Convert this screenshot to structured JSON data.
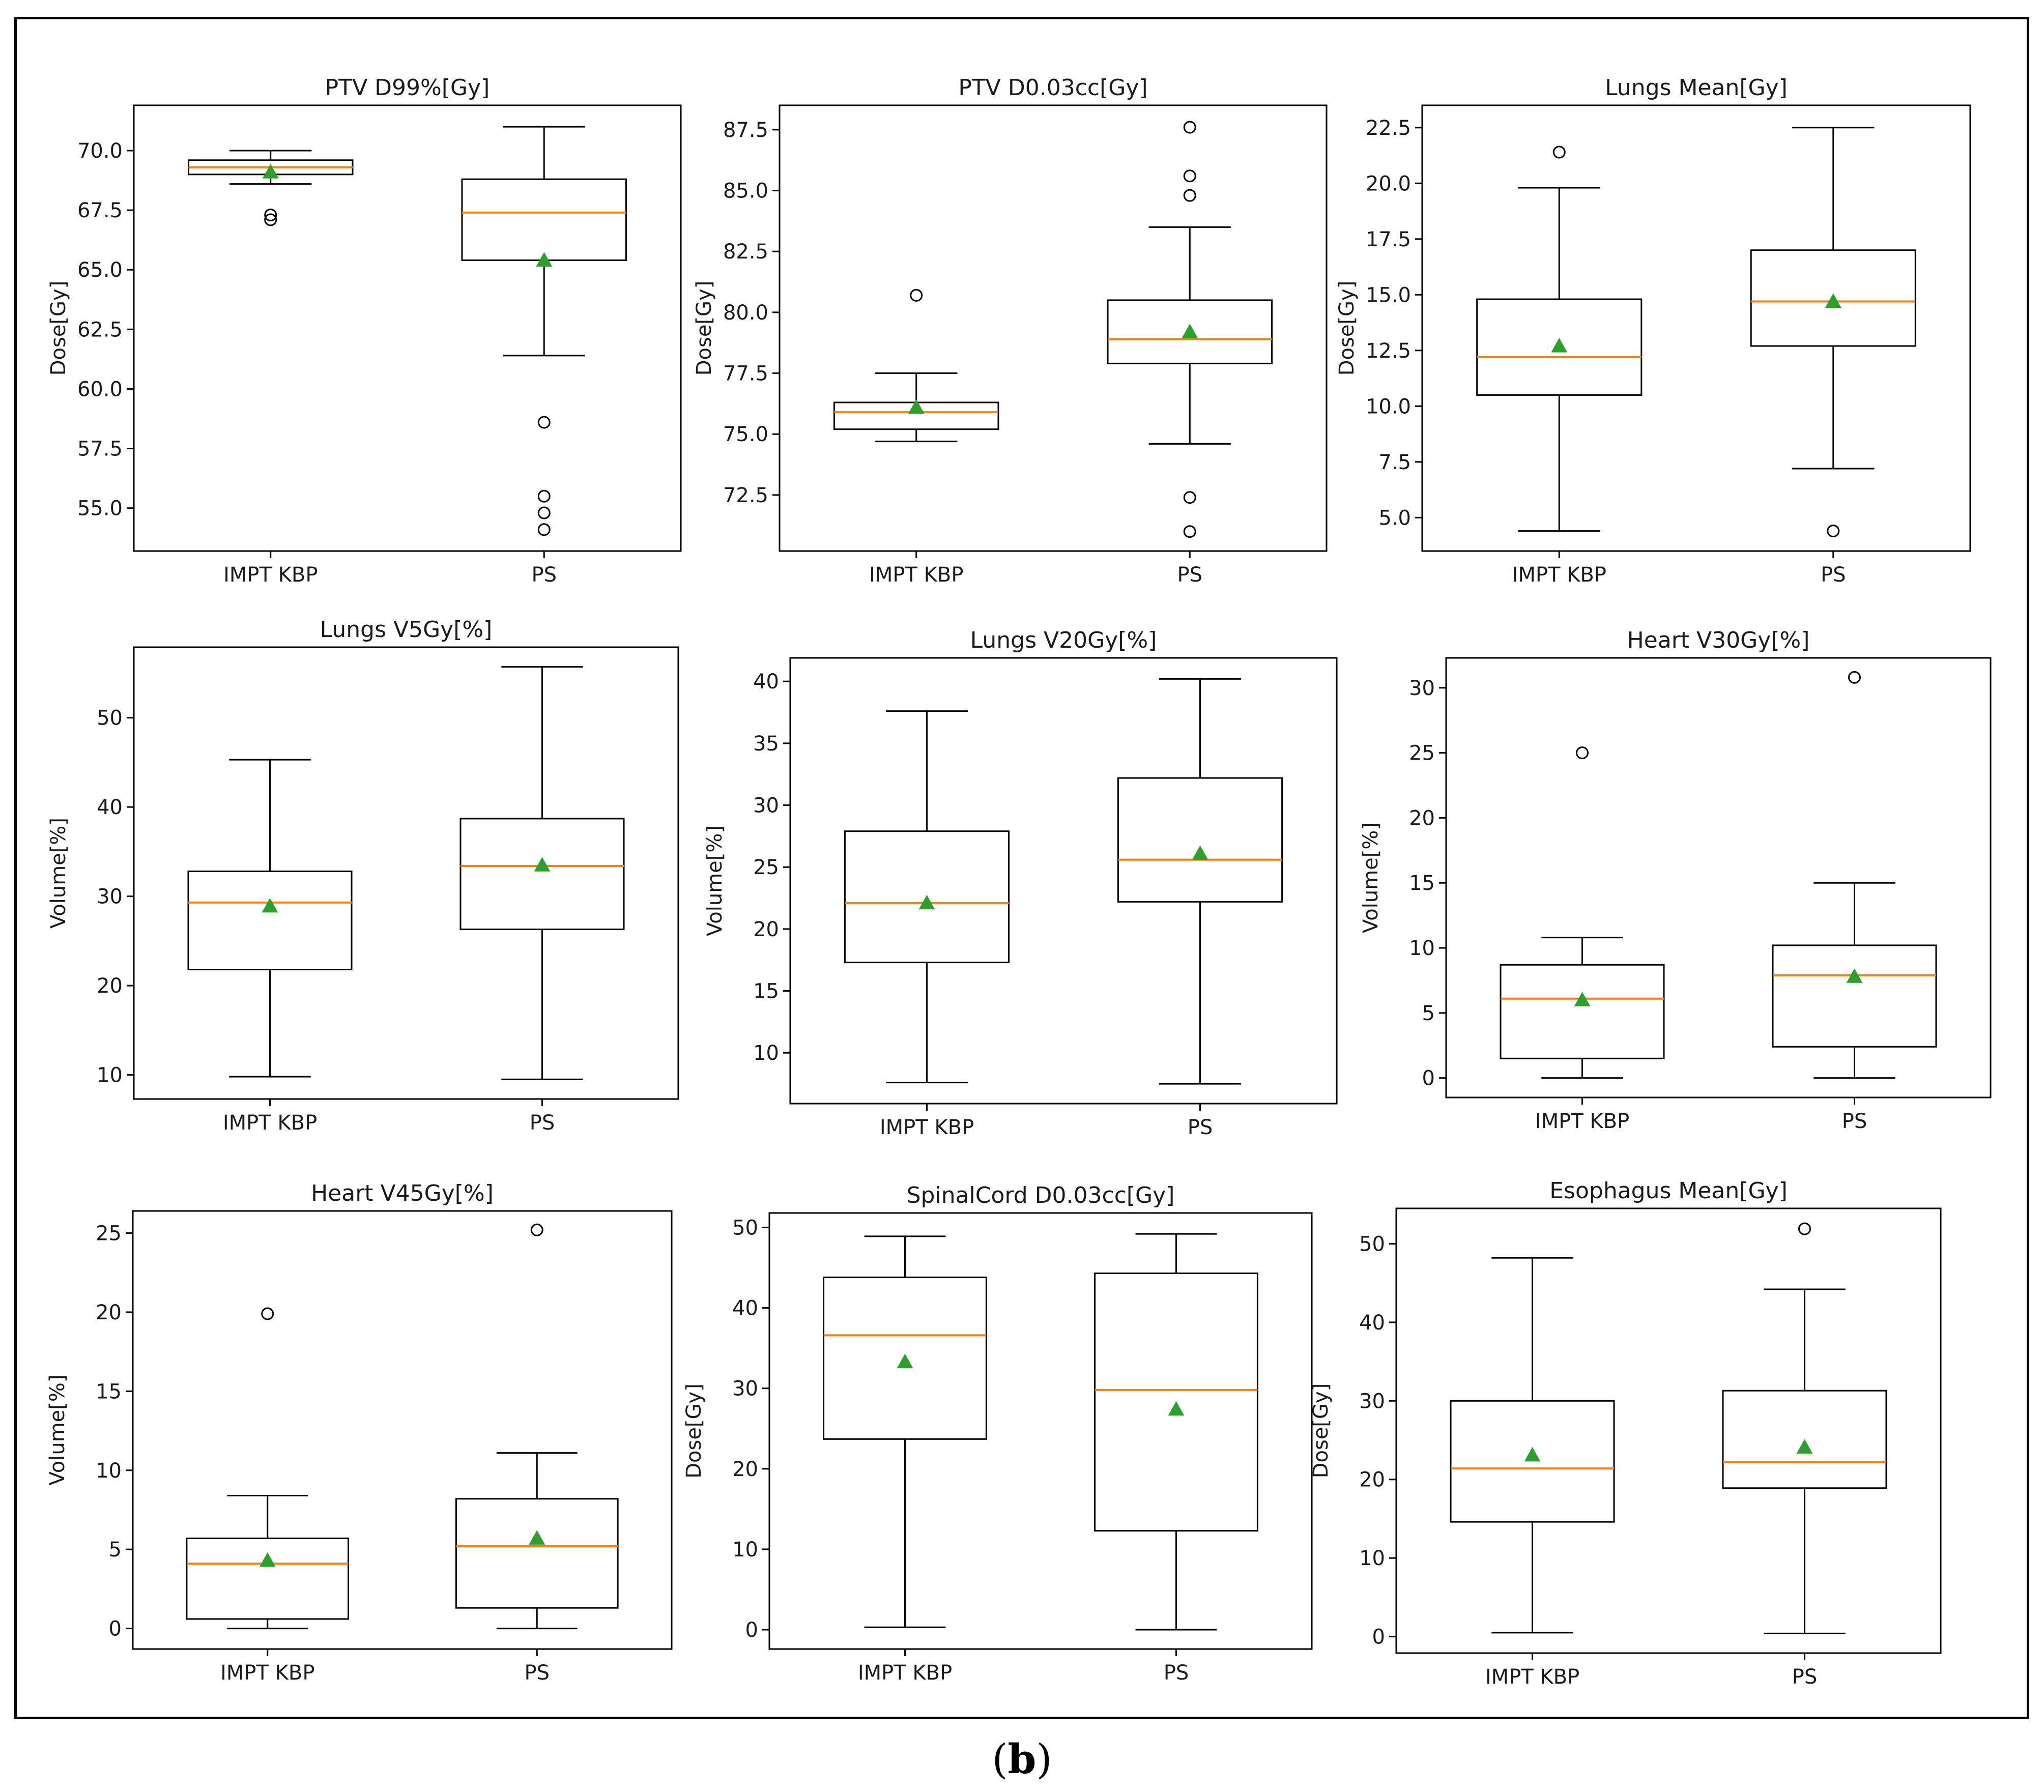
{
  "caption": {
    "open": "(",
    "letter": "b",
    "close": ")"
  },
  "colors": {
    "median": "#ff7f0e",
    "mean": "#2ca02c",
    "box": "#000000"
  },
  "chart_data": [
    {
      "type": "box",
      "title": "PTV D99%[Gy]",
      "ylabel": "Dose[Gy]",
      "categories": [
        "IMPT KBP",
        "PS"
      ],
      "ylim": [
        53.2,
        71.9
      ],
      "yticks": [
        55.0,
        57.5,
        60.0,
        62.5,
        65.0,
        67.5,
        70.0
      ],
      "tick_fmt": 1,
      "boxes": [
        {
          "whislo": 68.6,
          "q1": 69.0,
          "med": 69.3,
          "q3": 69.6,
          "whishi": 70.0,
          "mean": 69.1,
          "fliers": [
            67.1,
            67.3
          ]
        },
        {
          "whislo": 61.4,
          "q1": 65.4,
          "med": 67.4,
          "q3": 68.8,
          "whishi": 71.0,
          "mean": 65.4,
          "fliers": [
            58.6,
            55.5,
            54.8,
            54.1
          ]
        }
      ]
    },
    {
      "type": "box",
      "title": "PTV D0.03cc[Gy]",
      "ylabel": "Dose[Gy]",
      "categories": [
        "IMPT KBP",
        "PS"
      ],
      "ylim": [
        70.2,
        88.5
      ],
      "yticks": [
        72.5,
        75.0,
        77.5,
        80.0,
        82.5,
        85.0,
        87.5
      ],
      "tick_fmt": 1,
      "boxes": [
        {
          "whislo": 74.7,
          "q1": 75.2,
          "med": 75.9,
          "q3": 76.3,
          "whishi": 77.5,
          "mean": 76.1,
          "fliers": [
            80.7
          ]
        },
        {
          "whislo": 74.6,
          "q1": 77.9,
          "med": 78.9,
          "q3": 80.5,
          "whishi": 83.5,
          "mean": 79.2,
          "fliers": [
            84.8,
            85.6,
            87.6,
            72.4,
            71.0
          ]
        }
      ]
    },
    {
      "type": "box",
      "title": "Lungs Mean[Gy]",
      "ylabel": "Dose[Gy]",
      "categories": [
        "IMPT KBP",
        "PS"
      ],
      "ylim": [
        3.5,
        23.5
      ],
      "yticks": [
        5.0,
        7.5,
        10.0,
        12.5,
        15.0,
        17.5,
        20.0,
        22.5
      ],
      "tick_fmt": 1,
      "boxes": [
        {
          "whislo": 4.4,
          "q1": 10.5,
          "med": 12.2,
          "q3": 14.8,
          "whishi": 19.8,
          "mean": 12.7,
          "fliers": [
            21.4
          ]
        },
        {
          "whislo": 7.2,
          "q1": 12.7,
          "med": 14.7,
          "q3": 17.0,
          "whishi": 22.5,
          "mean": 14.7,
          "fliers": [
            4.4
          ]
        }
      ]
    },
    {
      "type": "box",
      "title": "Lungs V5Gy[%]",
      "ylabel": "Volume[%]",
      "categories": [
        "IMPT KBP",
        "PS"
      ],
      "ylim": [
        7.3,
        57.9
      ],
      "yticks": [
        10,
        20,
        30,
        40,
        50
      ],
      "tick_fmt": 0,
      "boxes": [
        {
          "whislo": 9.8,
          "q1": 21.8,
          "med": 29.3,
          "q3": 32.8,
          "whishi": 45.3,
          "mean": 28.9,
          "fliers": []
        },
        {
          "whislo": 9.5,
          "q1": 26.3,
          "med": 33.4,
          "q3": 38.7,
          "whishi": 55.7,
          "mean": 33.5,
          "fliers": []
        }
      ]
    },
    {
      "type": "box",
      "title": "Lungs V20Gy[%]",
      "ylabel": "Volume[%]",
      "categories": [
        "IMPT KBP",
        "PS"
      ],
      "ylim": [
        5.9,
        41.9
      ],
      "yticks": [
        10,
        15,
        20,
        25,
        30,
        35,
        40
      ],
      "tick_fmt": 0,
      "boxes": [
        {
          "whislo": 7.6,
          "q1": 17.3,
          "med": 22.1,
          "q3": 27.9,
          "whishi": 37.6,
          "mean": 22.1,
          "fliers": []
        },
        {
          "whislo": 7.5,
          "q1": 22.2,
          "med": 25.6,
          "q3": 32.2,
          "whishi": 40.2,
          "mean": 26.1,
          "fliers": []
        }
      ]
    },
    {
      "type": "box",
      "title": "Heart V30Gy[%]",
      "ylabel": "Volume[%]",
      "categories": [
        "IMPT KBP",
        "PS"
      ],
      "ylim": [
        -1.5,
        32.3
      ],
      "yticks": [
        0,
        5,
        10,
        15,
        20,
        25,
        30
      ],
      "tick_fmt": 0,
      "boxes": [
        {
          "whislo": 0.0,
          "q1": 1.5,
          "med": 6.1,
          "q3": 8.7,
          "whishi": 10.8,
          "mean": 6.0,
          "fliers": [
            25.0
          ]
        },
        {
          "whislo": 0.0,
          "q1": 2.4,
          "med": 7.9,
          "q3": 10.2,
          "whishi": 15.0,
          "mean": 7.8,
          "fliers": [
            30.8
          ]
        }
      ]
    },
    {
      "type": "box",
      "title": "Heart V45Gy[%]",
      "ylabel": "Volume[%]",
      "categories": [
        "IMPT KBP",
        "PS"
      ],
      "ylim": [
        -1.3,
        26.4
      ],
      "yticks": [
        0,
        5,
        10,
        15,
        20,
        25
      ],
      "tick_fmt": 0,
      "boxes": [
        {
          "whislo": 0.0,
          "q1": 0.6,
          "med": 4.1,
          "q3": 5.7,
          "whishi": 8.4,
          "mean": 4.3,
          "fliers": [
            19.9
          ]
        },
        {
          "whislo": 0.0,
          "q1": 1.3,
          "med": 5.2,
          "q3": 8.2,
          "whishi": 11.1,
          "mean": 5.7,
          "fliers": [
            25.2
          ]
        }
      ]
    },
    {
      "type": "box",
      "title": "SpinalCord D0.03cc[Gy]",
      "ylabel": "Dose[Gy]",
      "categories": [
        "IMPT KBP",
        "PS"
      ],
      "ylim": [
        -2.4,
        51.8
      ],
      "yticks": [
        0,
        10,
        20,
        30,
        40,
        50
      ],
      "tick_fmt": 0,
      "boxes": [
        {
          "whislo": 0.3,
          "q1": 23.7,
          "med": 36.6,
          "q3": 43.8,
          "whishi": 48.9,
          "mean": 33.3,
          "fliers": []
        },
        {
          "whislo": 0.0,
          "q1": 12.3,
          "med": 29.8,
          "q3": 44.3,
          "whishi": 49.2,
          "mean": 27.4,
          "fliers": []
        }
      ]
    },
    {
      "type": "box",
      "title": "Esophagus Mean[Gy]",
      "ylabel": "Dose[Gy]",
      "categories": [
        "IMPT KBP",
        "PS"
      ],
      "ylim": [
        -2.1,
        54.5
      ],
      "yticks": [
        0,
        10,
        20,
        30,
        40,
        50
      ],
      "tick_fmt": 0,
      "boxes": [
        {
          "whislo": 0.5,
          "q1": 14.6,
          "med": 21.4,
          "q3": 30.0,
          "whishi": 48.2,
          "mean": 23.1,
          "fliers": []
        },
        {
          "whislo": 0.4,
          "q1": 18.9,
          "med": 22.2,
          "q3": 31.3,
          "whishi": 44.2,
          "mean": 24.1,
          "fliers": [
            51.9
          ]
        }
      ]
    }
  ]
}
